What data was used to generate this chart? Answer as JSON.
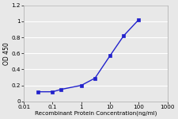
{
  "x": [
    0.03,
    0.1,
    0.2,
    1,
    3,
    10,
    30,
    100
  ],
  "y": [
    0.12,
    0.12,
    0.15,
    0.2,
    0.29,
    0.57,
    0.82,
    1.02
  ],
  "line_color": "#2222CC",
  "marker": "s",
  "marker_size": 2.5,
  "marker_facecolor": "#2222CC",
  "xlabel": "Recombinant Protein Concentration(ng/ml)",
  "ylabel": "OD 450",
  "xlim": [
    0.01,
    1000
  ],
  "ylim": [
    0,
    1.2
  ],
  "yticks": [
    0,
    0.2,
    0.4,
    0.6,
    0.8,
    1.0,
    1.2
  ],
  "xticks": [
    0.01,
    0.1,
    1,
    10,
    100,
    1000
  ],
  "xticklabels": [
    "0.01",
    "0.1",
    "1",
    "10",
    "100",
    "1000"
  ],
  "background_color": "#e8e8e8",
  "plot_bg_color": "#e8e8e8",
  "grid_color": "#ffffff",
  "xlabel_fontsize": 5.2,
  "ylabel_fontsize": 5.5,
  "tick_fontsize": 5.2,
  "line_width": 1.0
}
